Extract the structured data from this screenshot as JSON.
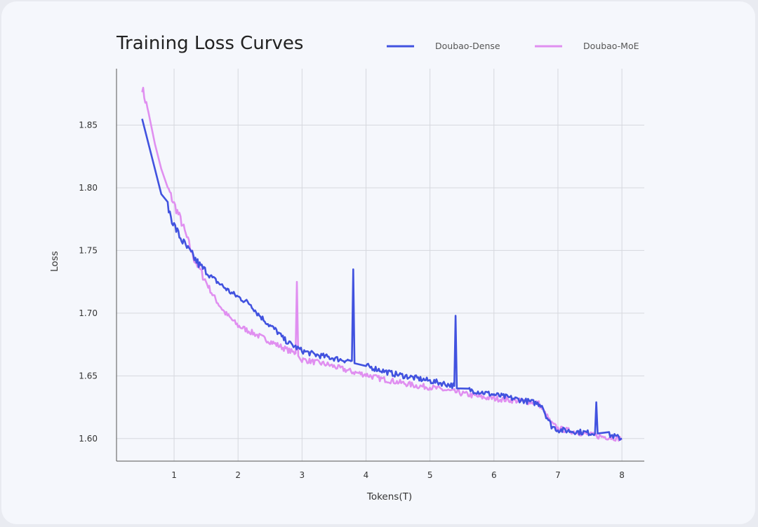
{
  "chart_data": {
    "type": "line",
    "title": "Training Loss Curves",
    "xlabel": "Tokens(T)",
    "ylabel": "Loss",
    "xlim": [
      0.1,
      8.35
    ],
    "ylim": [
      1.582,
      1.895
    ],
    "xticks": [
      1,
      2,
      3,
      4,
      5,
      6,
      7,
      8
    ],
    "yticks": [
      1.6,
      1.65,
      1.7,
      1.75,
      1.8,
      1.85
    ],
    "ytick_labels": [
      "1.60",
      "1.65",
      "1.70",
      "1.75",
      "1.80",
      "1.85"
    ],
    "grid": true,
    "legend_position": "top-right",
    "series": [
      {
        "name": "Doubao-Dense",
        "color": "#4152df",
        "x": [
          0.5,
          0.6,
          0.7,
          0.8,
          0.9,
          1.0,
          1.1,
          1.2,
          1.3,
          1.4,
          1.5,
          1.6,
          1.7,
          1.8,
          1.9,
          2.0,
          2.1,
          2.2,
          2.3,
          2.4,
          2.5,
          2.6,
          2.7,
          2.8,
          2.9,
          3.0,
          3.2,
          3.4,
          3.6,
          3.78,
          3.8,
          3.82,
          4.0,
          4.2,
          4.4,
          4.6,
          4.8,
          5.0,
          5.2,
          5.38,
          5.4,
          5.42,
          5.6,
          5.8,
          6.0,
          6.2,
          6.4,
          6.6,
          6.75,
          6.8,
          6.9,
          7.0,
          7.2,
          7.4,
          7.58,
          7.6,
          7.62,
          7.8,
          8.0
        ],
        "y": [
          1.855,
          1.835,
          1.815,
          1.795,
          1.785,
          1.77,
          1.76,
          1.752,
          1.745,
          1.738,
          1.733,
          1.728,
          1.724,
          1.72,
          1.716,
          1.713,
          1.71,
          1.707,
          1.7,
          1.695,
          1.69,
          1.686,
          1.68,
          1.676,
          1.673,
          1.67,
          1.667,
          1.665,
          1.663,
          1.662,
          1.735,
          1.66,
          1.658,
          1.655,
          1.652,
          1.65,
          1.648,
          1.646,
          1.644,
          1.642,
          1.698,
          1.64,
          1.639,
          1.637,
          1.635,
          1.633,
          1.631,
          1.629,
          1.627,
          1.62,
          1.61,
          1.607,
          1.606,
          1.605,
          1.604,
          1.629,
          1.604,
          1.603,
          1.6
        ]
      },
      {
        "name": "Doubao-MoE",
        "color": "#e08ff0",
        "x": [
          0.5,
          0.6,
          0.7,
          0.8,
          0.9,
          1.0,
          1.1,
          1.2,
          1.3,
          1.4,
          1.5,
          1.6,
          1.7,
          1.8,
          1.9,
          2.0,
          2.2,
          2.4,
          2.6,
          2.8,
          2.9,
          2.92,
          2.94,
          3.0,
          3.2,
          3.4,
          3.6,
          3.8,
          4.0,
          4.2,
          4.4,
          4.6,
          4.8,
          5.0,
          5.2,
          5.4,
          5.6,
          5.8,
          6.0,
          6.2,
          6.4,
          6.6,
          6.7,
          6.8,
          6.9,
          7.0,
          7.2,
          7.4,
          7.6,
          7.8,
          8.0
        ],
        "y": [
          1.88,
          1.86,
          1.835,
          1.815,
          1.8,
          1.787,
          1.775,
          1.76,
          1.745,
          1.735,
          1.725,
          1.715,
          1.707,
          1.7,
          1.695,
          1.69,
          1.685,
          1.68,
          1.675,
          1.67,
          1.668,
          1.725,
          1.666,
          1.663,
          1.661,
          1.659,
          1.656,
          1.653,
          1.651,
          1.648,
          1.646,
          1.644,
          1.642,
          1.641,
          1.639,
          1.637,
          1.635,
          1.633,
          1.632,
          1.631,
          1.63,
          1.629,
          1.628,
          1.62,
          1.612,
          1.608,
          1.606,
          1.604,
          1.602,
          1.601,
          1.6
        ]
      }
    ]
  }
}
